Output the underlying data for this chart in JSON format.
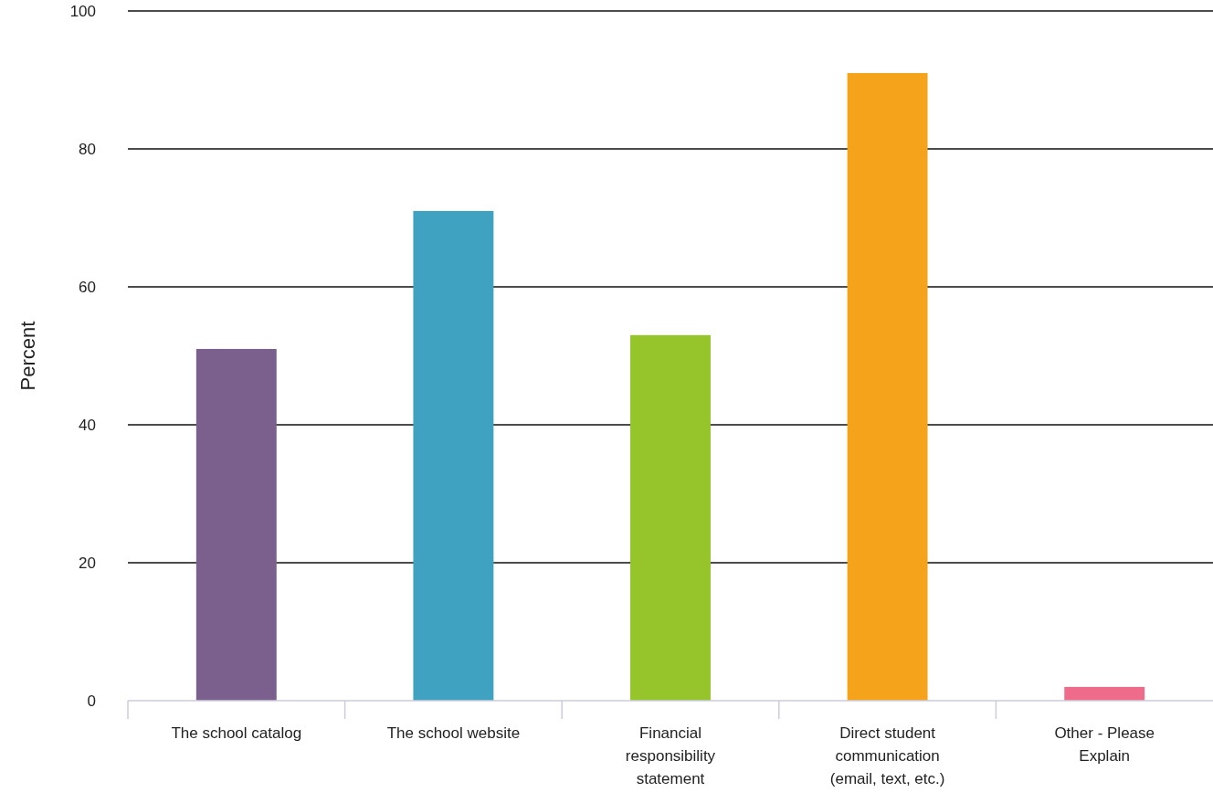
{
  "chart_data": {
    "type": "bar",
    "ylabel": "Percent",
    "categories": [
      "The school catalog",
      "The school website",
      "Financial responsibility statement",
      "Direct student communication (email, text, etc.)",
      "Other - Please Explain"
    ],
    "values": [
      51,
      71,
      53,
      91,
      2
    ],
    "colors": [
      "#7b5f8c",
      "#3fa2c0",
      "#95c52a",
      "#f4a31b",
      "#ee6b8a"
    ],
    "ylim": [
      0,
      100
    ],
    "yticks": [
      0,
      20,
      40,
      60,
      80,
      100
    ],
    "grid": "y"
  }
}
